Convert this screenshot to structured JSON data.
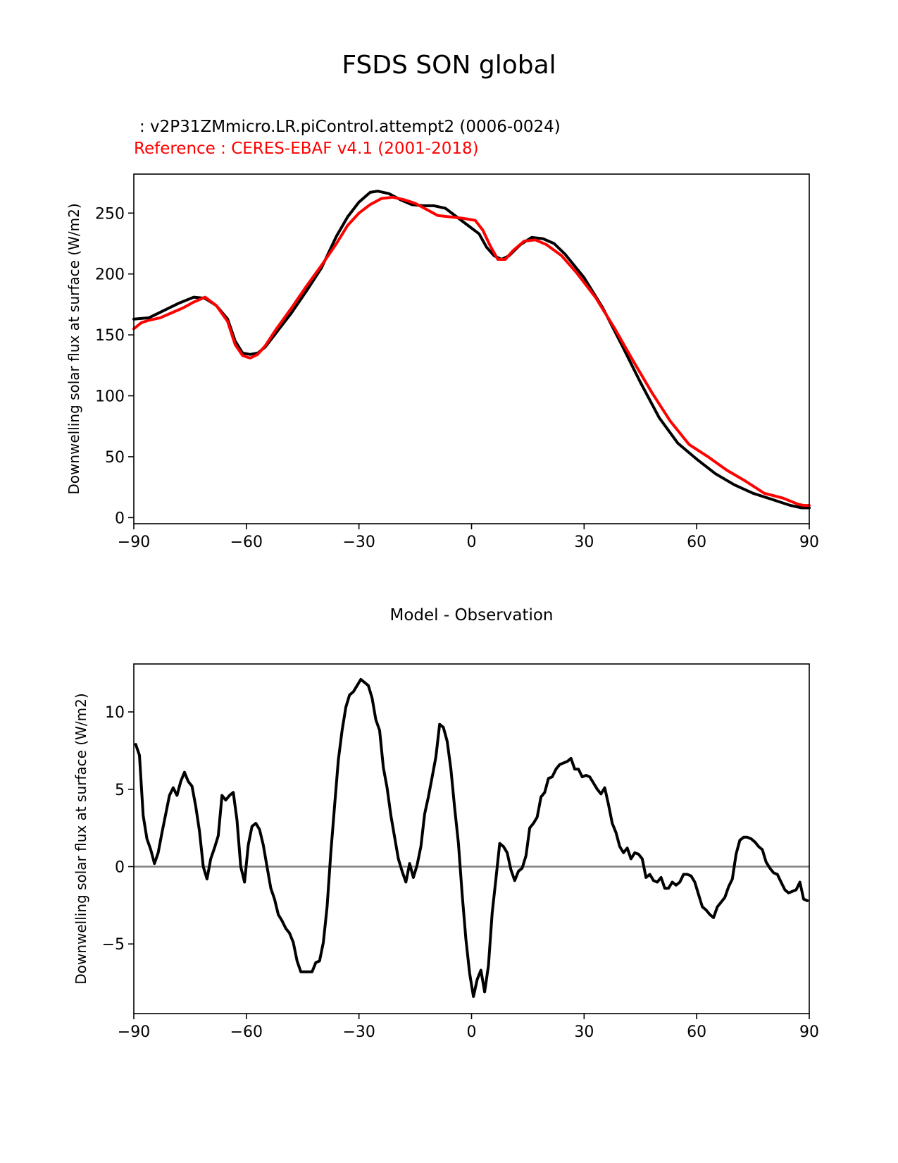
{
  "title": "FSDS SON global",
  "test_label": ": v2P31ZMmicro.LR.piControl.attempt2 (0006-0024)",
  "ref_label": "Reference : CERES-EBAF v4.1 (2001-2018)",
  "colors": {
    "test": "#000000",
    "ref": "#ff0000",
    "zero_line": "#808080"
  },
  "chart_data": [
    {
      "type": "line",
      "title": "",
      "xlabel": "",
      "ylabel": "Downwelling solar flux at surface (W/m2)",
      "xlim": [
        -90,
        90
      ],
      "ylim": [
        -5,
        282
      ],
      "xticks": [
        -90,
        -60,
        -30,
        0,
        30,
        60,
        90
      ],
      "xtick_labels": [
        "−90",
        "−60",
        "−30",
        "0",
        "30",
        "60",
        "90"
      ],
      "yticks": [
        0,
        50,
        100,
        150,
        200,
        250
      ],
      "ytick_labels": [
        "0",
        "50",
        "100",
        "150",
        "200",
        "250"
      ],
      "series": [
        {
          "name": "test",
          "color": "#000000",
          "x": [
            -90,
            -86,
            -82,
            -78,
            -74,
            -71,
            -68,
            -65,
            -63,
            -61,
            -59,
            -57,
            -55,
            -52,
            -48,
            -44,
            -40,
            -36,
            -33,
            -30,
            -27,
            -25,
            -22,
            -19,
            -16,
            -13,
            -10,
            -7,
            -4,
            -1,
            2,
            4,
            6,
            8,
            10,
            13,
            16,
            19,
            22,
            25,
            30,
            35,
            40,
            45,
            50,
            55,
            60,
            65,
            70,
            75,
            80,
            85,
            88,
            90
          ],
          "y": [
            163,
            164,
            170,
            176,
            181,
            180,
            174,
            163,
            145,
            135,
            134,
            135,
            140,
            152,
            168,
            186,
            205,
            231,
            247,
            259,
            267,
            268,
            266,
            261,
            257,
            256,
            256,
            254,
            247,
            240,
            233,
            222,
            215,
            212,
            215,
            224,
            230,
            229,
            225,
            216,
            197,
            172,
            142,
            111,
            82,
            61,
            48,
            36,
            27,
            20,
            15,
            10,
            8,
            8
          ]
        },
        {
          "name": "reference",
          "color": "#ff0000",
          "x": [
            -90,
            -88,
            -86,
            -83,
            -80,
            -77,
            -74,
            -71,
            -68,
            -65,
            -63,
            -61,
            -59,
            -57,
            -55,
            -52,
            -48,
            -44,
            -40,
            -36,
            -33,
            -30,
            -27,
            -24,
            -21,
            -18,
            -15,
            -12,
            -9,
            -6,
            -3,
            -1,
            1,
            3,
            5,
            7,
            9,
            11,
            14,
            17,
            20,
            24,
            28,
            33,
            38,
            43,
            48,
            53,
            58,
            63,
            68,
            73,
            78,
            83,
            87,
            88.5,
            90
          ],
          "y": [
            155,
            160,
            162,
            164,
            168,
            172,
            177,
            181,
            174,
            161,
            142,
            133,
            131,
            134,
            141,
            155,
            172,
            190,
            207,
            225,
            240,
            250,
            257,
            262,
            263,
            261,
            258,
            253,
            248,
            247,
            246,
            245,
            244,
            236,
            223,
            212,
            212,
            219,
            227,
            228,
            224,
            215,
            201,
            181,
            156,
            129,
            103,
            79,
            60,
            50,
            39,
            30,
            20,
            16,
            11,
            10,
            10
          ]
        }
      ]
    },
    {
      "type": "line",
      "title": "Model - Observation",
      "xlabel": "",
      "ylabel": "Downwelling solar flux at surface (W/m2)",
      "xlim": [
        -90,
        90
      ],
      "ylim": [
        -9.5,
        13.1
      ],
      "xticks": [
        -90,
        -60,
        -30,
        0,
        30,
        60,
        90
      ],
      "xtick_labels": [
        "−90",
        "−60",
        "−30",
        "0",
        "30",
        "60",
        "90"
      ],
      "yticks": [
        -5,
        0,
        5,
        10
      ],
      "ytick_labels": [
        "−5",
        "0",
        "5",
        "10"
      ],
      "zero_line": 0,
      "series": [
        {
          "name": "difference",
          "color": "#000000",
          "x": [
            -89.5,
            -88.5,
            -87.5,
            -86.5,
            -85.5,
            -84.5,
            -83.5,
            -82.5,
            -81.5,
            -80.5,
            -79.5,
            -78.5,
            -77.5,
            -76.5,
            -75.5,
            -74.5,
            -73.5,
            -72.5,
            -71.5,
            -70.5,
            -69.5,
            -68.5,
            -67.5,
            -66.5,
            -65.5,
            -64.5,
            -63.5,
            -62.5,
            -61.5,
            -60.5,
            -59.5,
            -58.5,
            -57.5,
            -56.5,
            -55.5,
            -54.5,
            -53.5,
            -52.5,
            -51.5,
            -50.5,
            -49.5,
            -48.5,
            -47.5,
            -46.5,
            -45.5,
            -44.5,
            -43.5,
            -42.5,
            -41.5,
            -40.5,
            -39.5,
            -38.5,
            -37.5,
            -36.5,
            -35.5,
            -34.5,
            -33.5,
            -32.5,
            -31.5,
            -30.5,
            -29.5,
            -28.5,
            -27.5,
            -26.5,
            -25.5,
            -24.5,
            -23.5,
            -22.5,
            -21.5,
            -20.5,
            -19.5,
            -18.5,
            -17.5,
            -16.5,
            -15.5,
            -14.5,
            -13.5,
            -12.5,
            -11.5,
            -10.5,
            -9.5,
            -8.5,
            -7.5,
            -6.5,
            -5.5,
            -4.5,
            -3.5,
            -2.5,
            -1.5,
            -0.5,
            0.5,
            1.5,
            2.5,
            3.5,
            4.5,
            5.5,
            6.5,
            7.5,
            8.5,
            9.5,
            10.5,
            11.5,
            12.5,
            13.5,
            14.5,
            15.5,
            16.5,
            17.5,
            18.5,
            19.5,
            20.5,
            21.5,
            22.5,
            23.5,
            24.5,
            25.5,
            26.5,
            27.5,
            28.5,
            29.5,
            30.5,
            31.5,
            32.5,
            33.5,
            34.5,
            35.5,
            36.5,
            37.5,
            38.5,
            39.5,
            40.5,
            41.5,
            42.5,
            43.5,
            44.5,
            45.5,
            46.5,
            47.5,
            48.5,
            49.5,
            50.5,
            51.5,
            52.5,
            53.5,
            54.5,
            55.5,
            56.5,
            57.5,
            58.5,
            59.5,
            60.5,
            61.5,
            62.5,
            63.5,
            64.5,
            65.5,
            66.5,
            67.5,
            68.5,
            69.5,
            70.5,
            71.5,
            72.5,
            73.5,
            74.5,
            75.5,
            76.5,
            77.5,
            78.5,
            79.5,
            80.5,
            81.5,
            82.5,
            83.5,
            84.5,
            85.5,
            86.5,
            87.5,
            88.5,
            89.5
          ],
          "y": [
            7.9,
            7.2,
            3.3,
            1.8,
            1.1,
            0.2,
            0.9,
            2.2,
            3.4,
            4.6,
            5.1,
            4.6,
            5.5,
            6.1,
            5.5,
            5.2,
            3.9,
            2.3,
            0.0,
            -0.8,
            0.5,
            1.2,
            2.0,
            4.6,
            4.3,
            4.6,
            4.8,
            3.0,
            0.0,
            -1.0,
            1.4,
            2.6,
            2.8,
            2.4,
            1.4,
            0.0,
            -1.4,
            -2.1,
            -3.1,
            -3.5,
            -4.0,
            -4.3,
            -4.9,
            -6.1,
            -6.8,
            -6.8,
            -6.8,
            -6.8,
            -6.2,
            -6.1,
            -4.9,
            -2.6,
            0.9,
            3.9,
            6.9,
            8.8,
            10.3,
            11.1,
            11.3,
            11.7,
            12.1,
            11.9,
            11.7,
            10.9,
            9.5,
            8.8,
            6.4,
            5.1,
            3.3,
            1.9,
            0.5,
            -0.3,
            -1.0,
            0.2,
            -0.7,
            0.1,
            1.3,
            3.4,
            4.5,
            5.8,
            7.1,
            9.2,
            9.0,
            8.1,
            6.3,
            3.8,
            1.5,
            -1.8,
            -4.7,
            -6.9,
            -8.4,
            -7.3,
            -6.7,
            -8.1,
            -6.4,
            -3.0,
            -0.8,
            1.5,
            1.3,
            0.9,
            -0.2,
            -0.9,
            -0.3,
            -0.1,
            0.7,
            2.5,
            2.8,
            3.2,
            4.5,
            4.8,
            5.7,
            5.8,
            6.3,
            6.6,
            6.7,
            6.8,
            7.0,
            6.3,
            6.3,
            5.8,
            5.9,
            5.8,
            5.4,
            5.0,
            4.7,
            5.1,
            4.0,
            2.8,
            2.2,
            1.3,
            0.9,
            1.2,
            0.5,
            0.9,
            0.8,
            0.5,
            -0.7,
            -0.5,
            -0.9,
            -1.0,
            -0.7,
            -1.4,
            -1.4,
            -1.0,
            -1.2,
            -1.0,
            -0.5,
            -0.5,
            -0.6,
            -1.0,
            -1.8,
            -2.6,
            -2.8,
            -3.1,
            -3.3,
            -2.6,
            -2.3,
            -2.0,
            -1.3,
            -0.8,
            0.8,
            1.7,
            1.9,
            1.9,
            1.8,
            1.6,
            1.3,
            1.1,
            0.3,
            -0.1,
            -0.4,
            -0.5,
            -1.0,
            -1.5,
            -1.7,
            -1.6,
            -1.5,
            -1.0,
            -2.1,
            -2.2
          ]
        }
      ]
    }
  ]
}
